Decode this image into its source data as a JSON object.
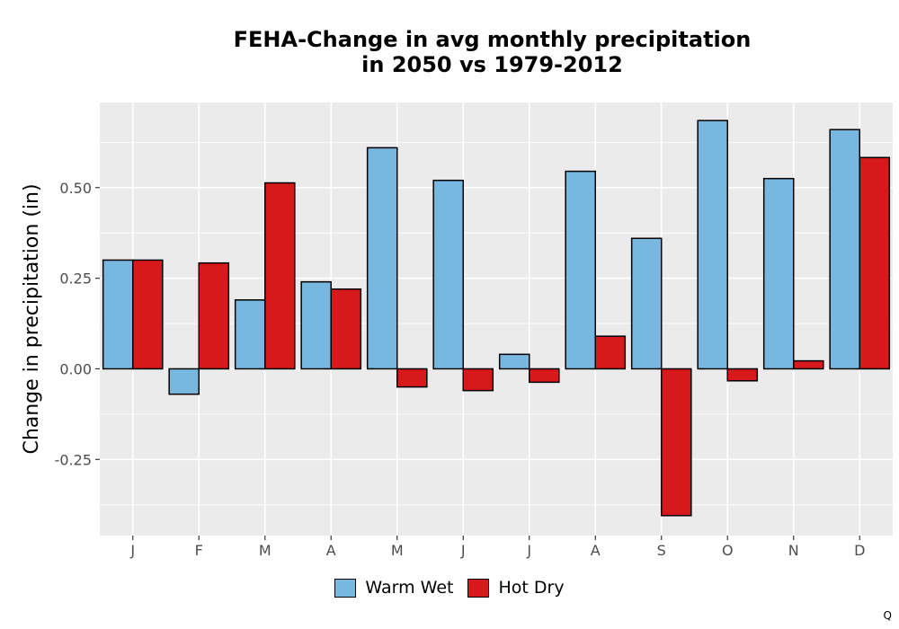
{
  "colors": {
    "warm_wet": "#77b7e0",
    "hot_dry": "#d7191c",
    "panel_bg": "#ebebeb",
    "grid": "#ffffff"
  },
  "corner_mark": "Q",
  "chart_data": {
    "type": "bar",
    "title_lines": [
      "FEHA-Change in avg monthly precipitation",
      "in 2050 vs 1979-2012"
    ],
    "xlabel": "",
    "ylabel": "Change in precipitation (in)",
    "categories": [
      "J",
      "F",
      "M",
      "A",
      "M",
      "J",
      "J",
      "A",
      "S",
      "O",
      "N",
      "D"
    ],
    "series": [
      {
        "name": "Warm Wet",
        "color": "#77b7e0",
        "values": [
          0.3,
          -0.07,
          0.19,
          0.24,
          0.61,
          0.52,
          0.04,
          0.545,
          0.36,
          0.685,
          0.525,
          0.66
        ]
      },
      {
        "name": "Hot Dry",
        "color": "#d7191c",
        "values": [
          0.3,
          0.292,
          0.513,
          0.22,
          -0.05,
          -0.06,
          -0.037,
          0.09,
          -0.405,
          -0.033,
          0.022,
          0.583
        ]
      }
    ],
    "yticks": [
      -0.25,
      0.0,
      0.25,
      0.5
    ],
    "ytick_labels": [
      "-0.25",
      "0.00",
      "0.25",
      "0.50"
    ],
    "ylim": [
      -0.46,
      0.735
    ],
    "grid": true,
    "legend_position": "bottom"
  }
}
